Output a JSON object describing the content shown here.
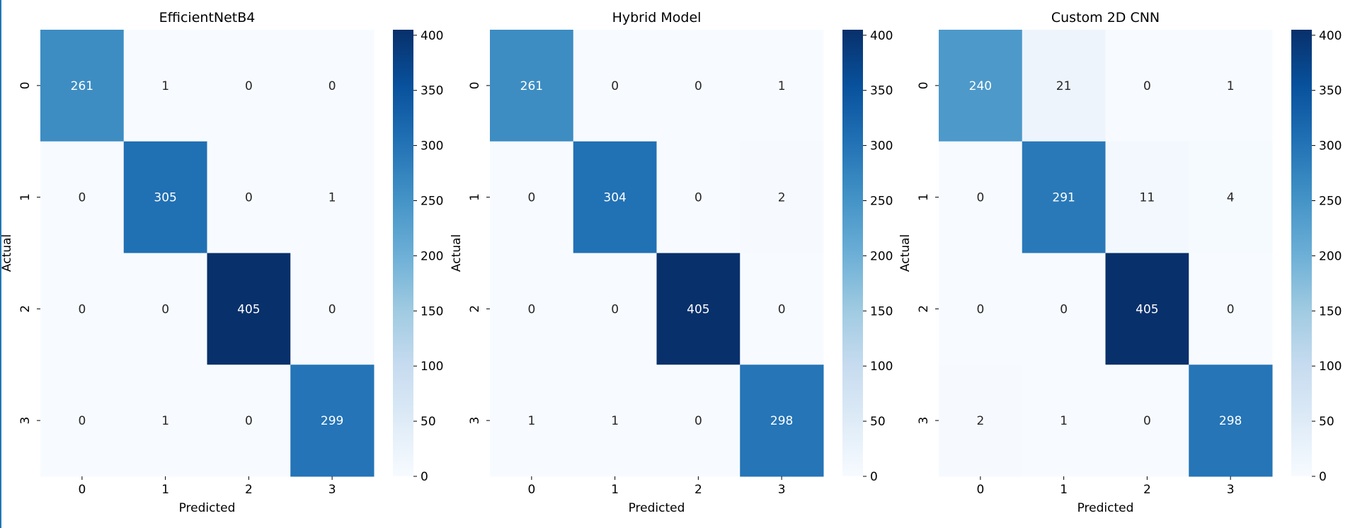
{
  "chart_data": [
    {
      "type": "heatmap",
      "title": "EfficientNetB4",
      "xlabel": "Predicted",
      "ylabel": "Actual",
      "x_categories": [
        "0",
        "1",
        "2",
        "3"
      ],
      "y_categories": [
        "0",
        "1",
        "2",
        "3"
      ],
      "values": [
        [
          261,
          1,
          0,
          0
        ],
        [
          0,
          305,
          0,
          1
        ],
        [
          0,
          0,
          405,
          0
        ],
        [
          0,
          1,
          0,
          299
        ]
      ],
      "colormap": "Blues",
      "vmin": 0,
      "vmax": 405,
      "colorbar_ticks": [
        0,
        50,
        100,
        150,
        200,
        250,
        300,
        350,
        400
      ]
    },
    {
      "type": "heatmap",
      "title": "Hybrid Model",
      "xlabel": "Predicted",
      "ylabel": "Actual",
      "x_categories": [
        "0",
        "1",
        "2",
        "3"
      ],
      "y_categories": [
        "0",
        "1",
        "2",
        "3"
      ],
      "values": [
        [
          261,
          0,
          0,
          1
        ],
        [
          0,
          304,
          0,
          2
        ],
        [
          0,
          0,
          405,
          0
        ],
        [
          1,
          1,
          0,
          298
        ]
      ],
      "colormap": "Blues",
      "vmin": 0,
      "vmax": 405,
      "colorbar_ticks": [
        0,
        50,
        100,
        150,
        200,
        250,
        300,
        350,
        400
      ]
    },
    {
      "type": "heatmap",
      "title": "Custom 2D CNN",
      "xlabel": "Predicted",
      "ylabel": "Actual",
      "x_categories": [
        "0",
        "1",
        "2",
        "3"
      ],
      "y_categories": [
        "0",
        "1",
        "2",
        "3"
      ],
      "values": [
        [
          240,
          21,
          0,
          1
        ],
        [
          0,
          291,
          11,
          4
        ],
        [
          0,
          0,
          405,
          0
        ],
        [
          2,
          1,
          0,
          298
        ]
      ],
      "colormap": "Blues",
      "vmin": 0,
      "vmax": 405,
      "colorbar_ticks": [
        0,
        50,
        100,
        150,
        200,
        250,
        300,
        350,
        400
      ]
    }
  ]
}
